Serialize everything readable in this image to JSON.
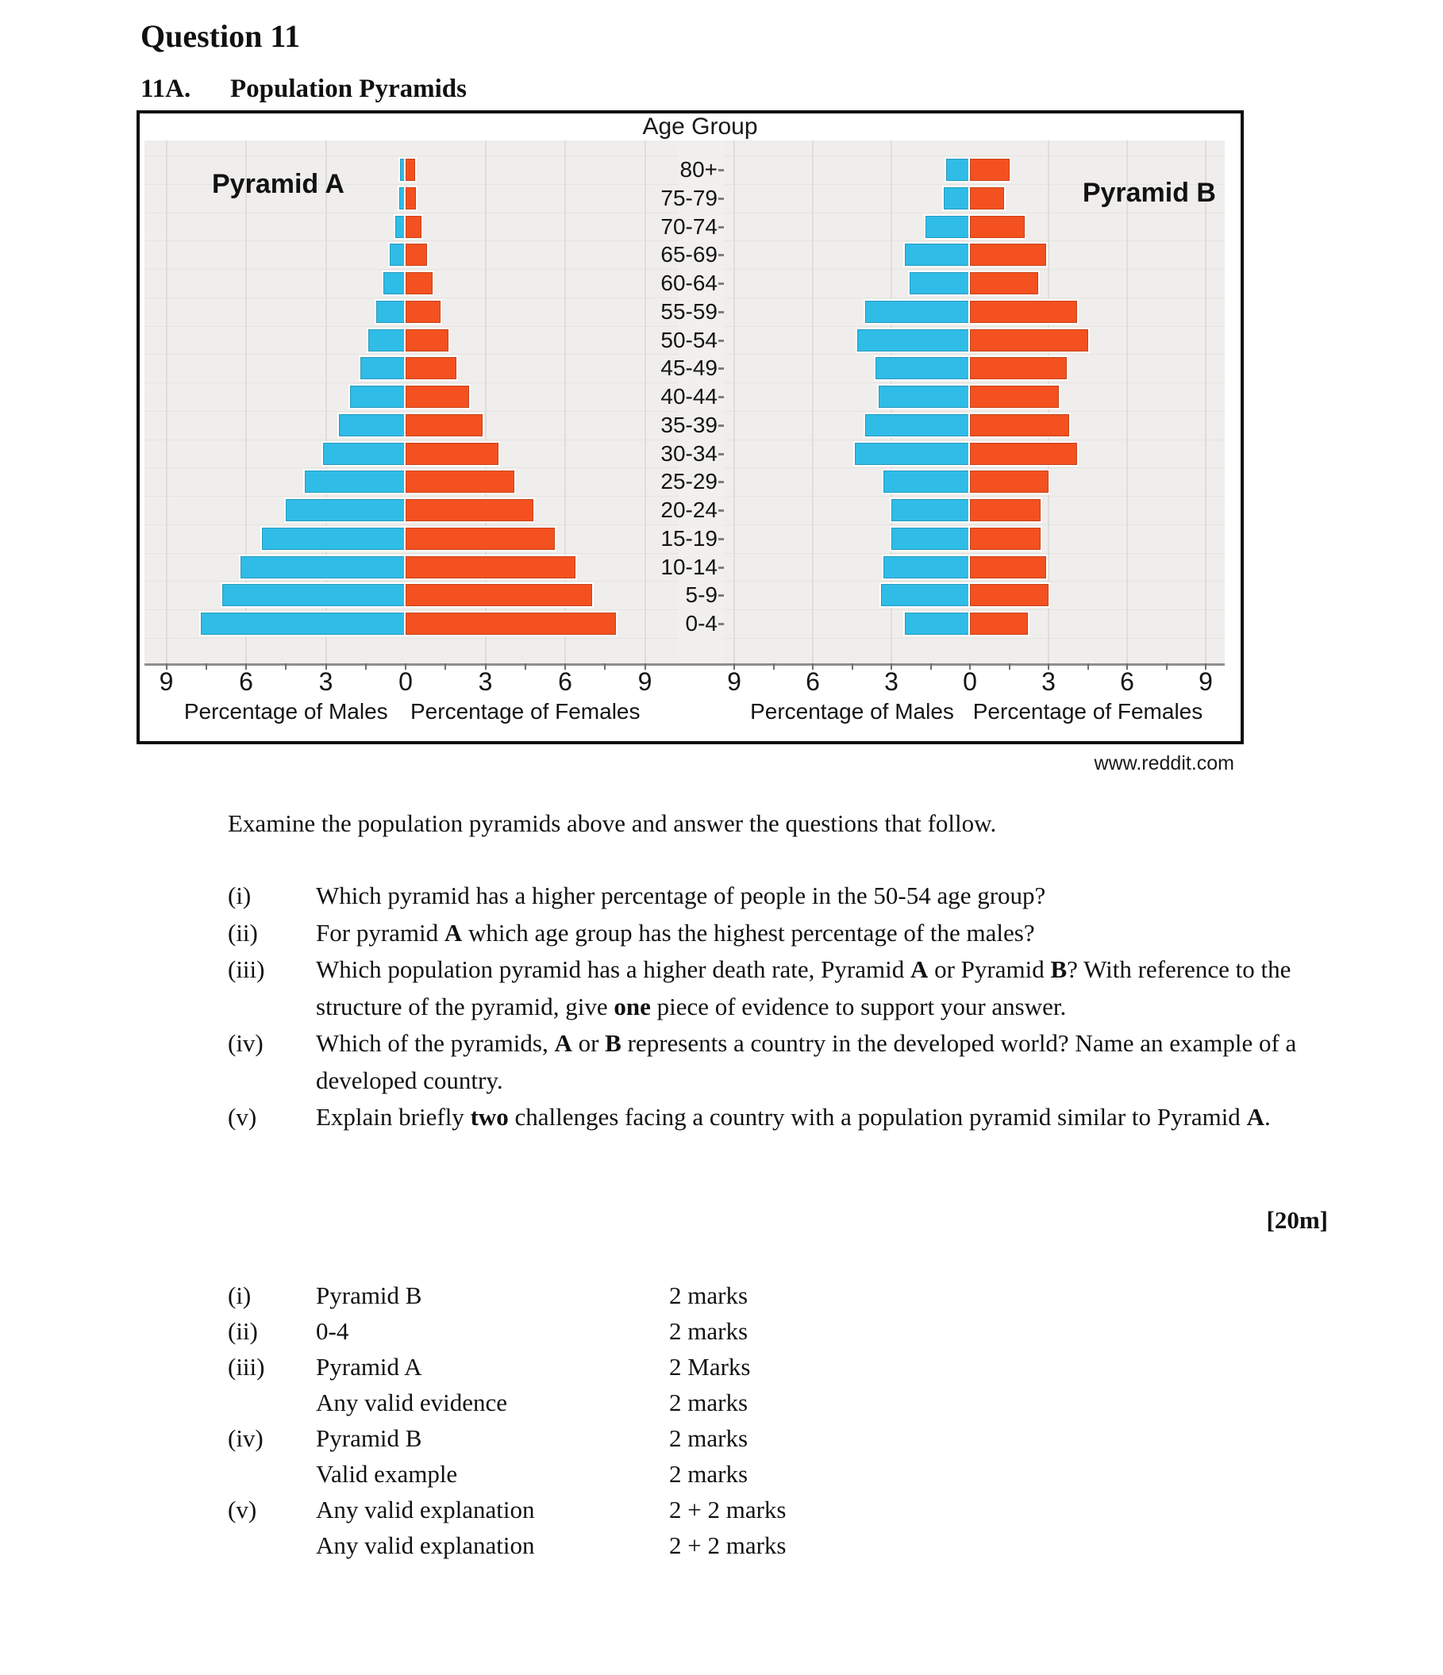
{
  "header": {
    "question_label": "Question 11",
    "section_number": "11A.",
    "section_title": "Population Pyramids"
  },
  "figure": {
    "age_axis_title": "Age Group",
    "credit": "www.reddit.com",
    "xlabel_male": "Percentage of Males",
    "xlabel_female": "Percentage of Females"
  },
  "chart_data": {
    "type": "bar",
    "subtype": "population-pyramid-pair",
    "age_groups": [
      "80+",
      "75-79",
      "70-74",
      "65-69",
      "60-64",
      "55-59",
      "50-54",
      "45-49",
      "40-44",
      "35-39",
      "30-34",
      "25-29",
      "20-24",
      "15-19",
      "10-14",
      "5-9",
      "0-4"
    ],
    "axis": {
      "tick_labels": [
        "9",
        "6",
        "3",
        "0",
        "3",
        "6",
        "9"
      ],
      "max": 9,
      "minor_tick_step": 1.5,
      "unit": "percent"
    },
    "colors": {
      "male": "#2fbce7",
      "female": "#f3511f"
    },
    "pyramids": [
      {
        "name": "Pyramid A",
        "male": [
          0.2,
          0.25,
          0.4,
          0.6,
          0.85,
          1.1,
          1.4,
          1.7,
          2.1,
          2.5,
          3.1,
          3.8,
          4.5,
          5.4,
          6.2,
          6.9,
          7.7
        ],
        "female": [
          0.35,
          0.4,
          0.6,
          0.8,
          1.0,
          1.3,
          1.6,
          1.9,
          2.4,
          2.9,
          3.5,
          4.1,
          4.8,
          5.6,
          6.4,
          7.0,
          7.9
        ]
      },
      {
        "name": "Pyramid B",
        "male": [
          0.9,
          1.0,
          1.7,
          2.5,
          2.3,
          4.0,
          4.3,
          3.6,
          3.5,
          4.0,
          4.4,
          3.3,
          3.0,
          3.0,
          3.3,
          3.4,
          2.5
        ],
        "female": [
          1.5,
          1.3,
          2.1,
          2.9,
          2.6,
          4.1,
          4.5,
          3.7,
          3.4,
          3.8,
          4.1,
          3.0,
          2.7,
          2.7,
          2.9,
          3.0,
          2.2
        ]
      }
    ]
  },
  "questions": {
    "intro": "Examine the population pyramids above and answer the questions that follow.",
    "items": [
      {
        "label": "(i)",
        "text": "Which pyramid has a higher percentage of people in the 50-54 age group?"
      },
      {
        "label": "(ii)",
        "text": "For pyramid **A** which age group has the highest percentage of the males?"
      },
      {
        "label": "(iii)",
        "text": "Which population pyramid has a higher death rate, Pyramid **A** or Pyramid **B**? With reference to the structure of the pyramid, give **one** piece of evidence to support your answer."
      },
      {
        "label": "(iv)",
        "text": "Which of the pyramids, **A** or **B** represents a country in the developed world?  Name an example of a developed country."
      },
      {
        "label": "(v)",
        "text": "Explain briefly **two** challenges facing a country with a population pyramid similar to Pyramid **A**."
      }
    ],
    "total_marks": "[20m]"
  },
  "answers": {
    "rows": [
      {
        "label": "(i)",
        "text": "Pyramid B",
        "marks": "2 marks"
      },
      {
        "label": "(ii)",
        "text": "0-4",
        "marks": "2 marks"
      },
      {
        "label": "(iii)",
        "text": "Pyramid A",
        "marks": "2 Marks"
      },
      {
        "label": "",
        "text": "Any valid evidence",
        "marks": "2 marks"
      },
      {
        "label": "(iv)",
        "text": "Pyramid B",
        "marks": "2 marks"
      },
      {
        "label": "",
        "text": "Valid example",
        "marks": "2 marks"
      },
      {
        "label": "(v)",
        "text": "Any valid explanation",
        "marks": "2 + 2 marks"
      },
      {
        "label": "",
        "text": "Any valid explanation",
        "marks": "2 + 2 marks"
      }
    ]
  }
}
